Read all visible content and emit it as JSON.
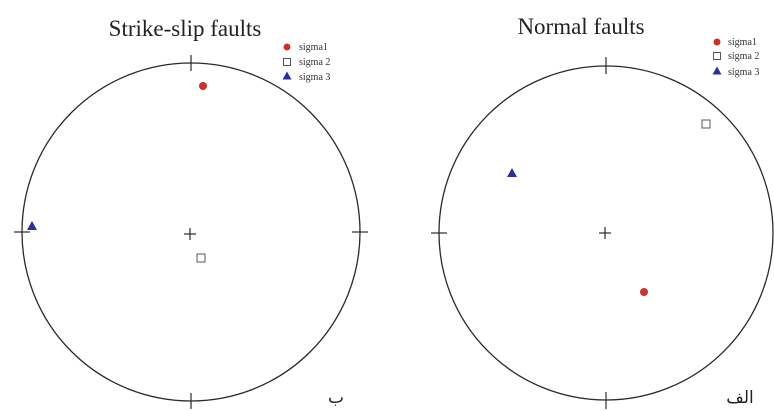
{
  "panels": [
    {
      "title": "Strike-slip faults",
      "label": "ب",
      "legend": [
        {
          "label": "sigma1",
          "marker": "red-circle"
        },
        {
          "label": "sigma 2",
          "marker": "open-square"
        },
        {
          "label": "sigma 3",
          "marker": "blue-triangle"
        }
      ]
    },
    {
      "title": "Normal faults",
      "label": "الف",
      "legend": [
        {
          "label": "sigma1",
          "marker": "red-circle"
        },
        {
          "label": "sigma 2",
          "marker": "open-square"
        },
        {
          "label": "sigma 3",
          "marker": "blue-triangle"
        }
      ]
    }
  ],
  "colors": {
    "sigma1": "#d0302c",
    "sigma2_fill": "#ffffff",
    "sigma2_stroke": "#555555",
    "sigma3": "#2b2f9c",
    "net": "#2a2a2a"
  }
}
